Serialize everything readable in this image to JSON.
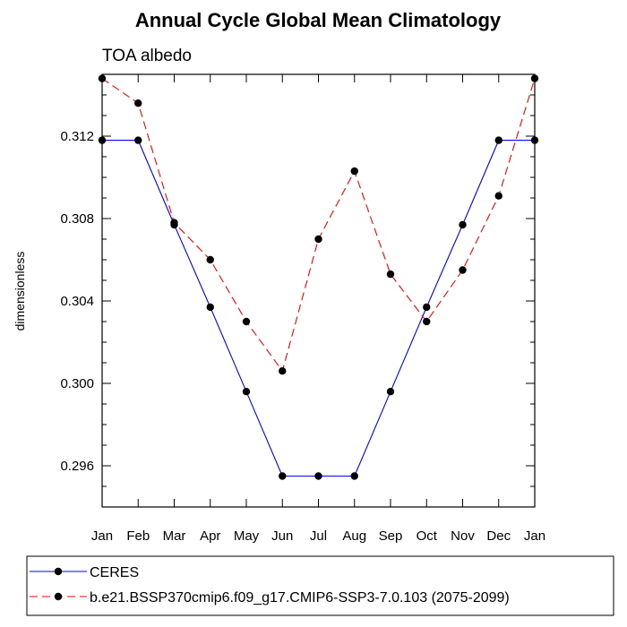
{
  "chart_data": {
    "type": "line",
    "title": "Annual Cycle Global Mean Climatology",
    "subtitle": "TOA albedo",
    "xlabel": "",
    "ylabel": "dimensionless",
    "categories": [
      "Jan",
      "Feb",
      "Mar",
      "Apr",
      "May",
      "Jun",
      "Jul",
      "Aug",
      "Sep",
      "Oct",
      "Nov",
      "Dec",
      "Jan"
    ],
    "ylim": [
      0.294,
      0.315
    ],
    "yticks": [
      "0.296",
      "0.300",
      "0.304",
      "0.308",
      "0.312"
    ],
    "grid": false,
    "legend_position": "bottom",
    "series": [
      {
        "name": "CERES",
        "color": "#0000ff",
        "dash": "solid",
        "values": [
          0.3118,
          0.3118,
          0.3077,
          0.3037,
          0.2996,
          0.2955,
          0.2955,
          0.2955,
          0.2996,
          0.3037,
          0.3077,
          0.3118,
          0.3118
        ]
      },
      {
        "name": "b.e21.BSSP370cmip6.f09_g17.CMIP6-SSP3-7.0.103 (2075-2099)",
        "color": "#ff0000",
        "dash": "dashed",
        "values": [
          0.3148,
          0.3136,
          0.3078,
          0.306,
          0.303,
          0.3006,
          0.307,
          0.3103,
          0.3053,
          0.303,
          0.3055,
          0.3091,
          0.3148
        ]
      }
    ]
  }
}
